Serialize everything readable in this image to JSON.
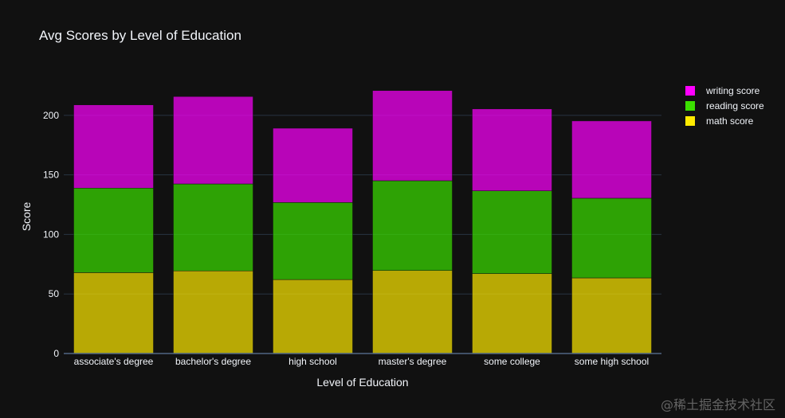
{
  "chart_data": {
    "type": "bar",
    "stacked": true,
    "title": "Avg Scores by Level of Education",
    "xlabel": "Level of Education",
    "ylabel": "Score",
    "ylim": [
      0,
      230
    ],
    "yticks": [
      0,
      50,
      100,
      150,
      200
    ],
    "grid": true,
    "legend_position": "top-right",
    "categories": [
      "associate's degree",
      "bachelor's degree",
      "high school",
      "master's degree",
      "some college",
      "some high school"
    ],
    "series": [
      {
        "name": "math score",
        "color": "#FFEA00",
        "values": [
          67.9,
          69.4,
          62.1,
          69.7,
          67.1,
          63.5
        ]
      },
      {
        "name": "reading score",
        "color": "#3BE000",
        "values": [
          71.0,
          73.0,
          64.7,
          75.4,
          69.5,
          66.9
        ]
      },
      {
        "name": "writing score",
        "color": "#FF00FF",
        "values": [
          69.9,
          73.4,
          62.4,
          75.7,
          68.8,
          64.9
        ]
      }
    ]
  },
  "watermark": "@稀土掘金技术社区"
}
